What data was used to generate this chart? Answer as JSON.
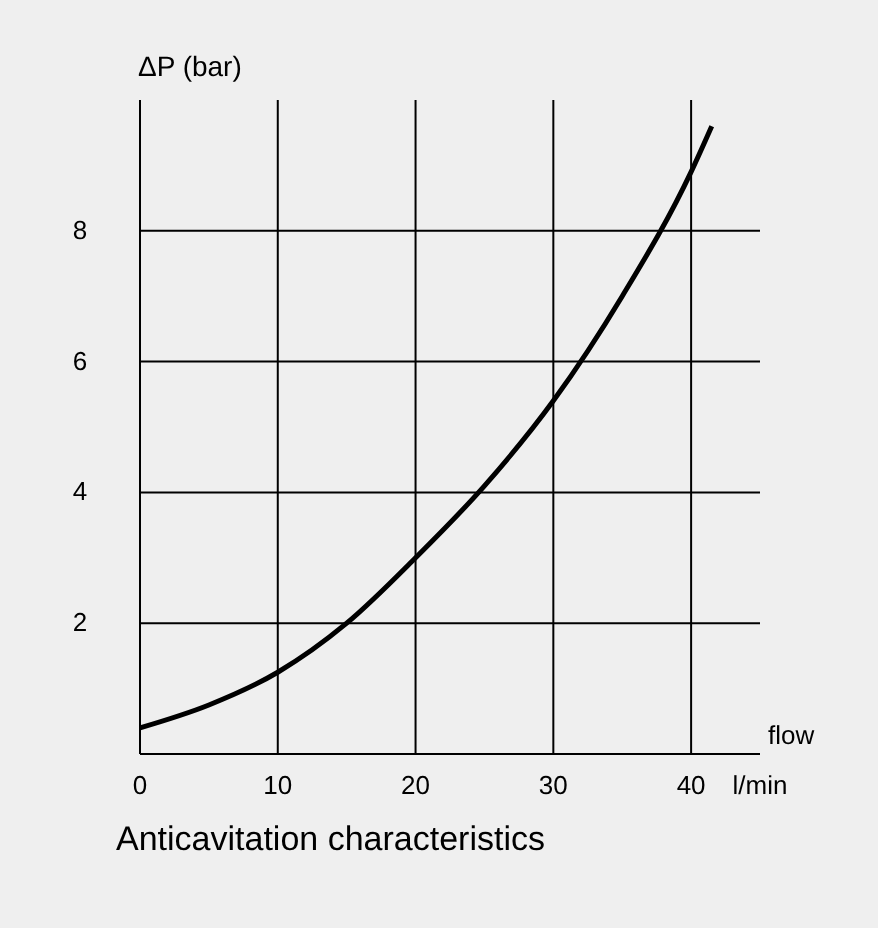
{
  "chart_data": {
    "type": "line",
    "ylabel": "ΔP (bar)",
    "xlabel": "flow",
    "annotations": [
      "Anticavitation characteristics"
    ],
    "series": [
      {
        "color": "#000000",
        "x": [
          0,
          5,
          10,
          15,
          20,
          25,
          30,
          35,
          40,
          41.5
        ],
        "values": [
          0.4,
          0.75,
          1.25,
          2.0,
          3.0,
          4.1,
          5.4,
          7.0,
          8.9,
          9.6
        ]
      }
    ],
    "xlim": [
      0,
      45
    ],
    "xticks": [
      0,
      10,
      20,
      30,
      40,
      {
        "value": 45,
        "label": "l/min"
      }
    ],
    "ylim": [
      0,
      10
    ],
    "yticks": [
      2,
      4,
      6,
      8
    ],
    "grid": true,
    "marker": "none",
    "line_style": "solid"
  }
}
